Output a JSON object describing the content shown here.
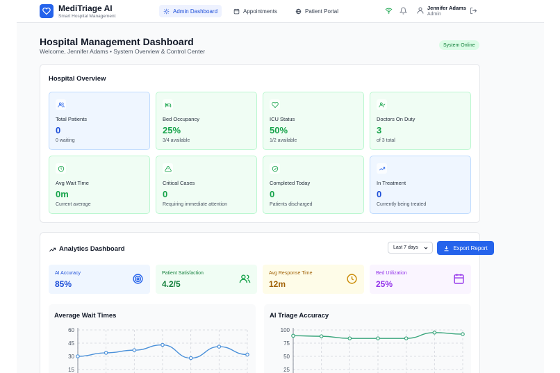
{
  "brand": {
    "title": "MediTriage AI",
    "subtitle": "Smart Hospital Management"
  },
  "nav": [
    {
      "label": "Admin Dashboard",
      "icon": "gear-icon"
    },
    {
      "label": "Appointments",
      "icon": "calendar-icon"
    },
    {
      "label": "Patient Portal",
      "icon": "globe-icon"
    }
  ],
  "user": {
    "name": "Jennifer Adams",
    "role": "Admin"
  },
  "header": {
    "title": "Hospital Management Dashboard",
    "subtitle": "Welcome, Jennifer Adams • System Overview & Control Center",
    "status": "System Online"
  },
  "overview": {
    "title": "Hospital Overview",
    "stats": [
      {
        "label": "Total Patients",
        "value": "0",
        "sub": "0 waiting",
        "icon": "users-icon",
        "tone": "blue"
      },
      {
        "label": "Bed Occupancy",
        "value": "25%",
        "sub": "3/4 available",
        "icon": "bed-icon",
        "tone": "green"
      },
      {
        "label": "ICU Status",
        "value": "50%",
        "sub": "1/2 available",
        "icon": "heart-icon",
        "tone": "green"
      },
      {
        "label": "Doctors On Duty",
        "value": "3",
        "sub": "of 3 total",
        "icon": "user-check-icon",
        "tone": "green"
      },
      {
        "label": "Avg Wait Time",
        "value": "0m",
        "sub": "Current average",
        "icon": "clock-icon",
        "tone": "green"
      },
      {
        "label": "Critical Cases",
        "value": "0",
        "sub": "Requiring immediate attention",
        "icon": "alert-triangle-icon",
        "tone": "green"
      },
      {
        "label": "Completed Today",
        "value": "0",
        "sub": "Patients discharged",
        "icon": "check-circle-icon",
        "tone": "green"
      },
      {
        "label": "In Treatment",
        "value": "0",
        "sub": "Currently being treated",
        "icon": "trending-up-icon",
        "tone": "blue"
      }
    ]
  },
  "analytics": {
    "title": "Analytics Dashboard",
    "range": "Last 7 days",
    "export_label": "Export Report",
    "metrics": [
      {
        "label": "AI Accuracy",
        "value": "85%",
        "icon": "target-icon",
        "bg": "#eff6ff",
        "color": "#1d4ed8"
      },
      {
        "label": "Patient Satisfaction",
        "value": "4.2/5",
        "icon": "users-icon",
        "bg": "#f0fdf4",
        "color": "#15803d"
      },
      {
        "label": "Avg Response Time",
        "value": "12m",
        "icon": "clock-icon",
        "bg": "#fefce8",
        "color": "#a16207"
      },
      {
        "label": "Bed Utilization",
        "value": "25%",
        "icon": "calendar-icon",
        "bg": "#faf5ff",
        "color": "#9333ea"
      }
    ]
  },
  "chart_data": [
    {
      "type": "line",
      "title": "Average Wait Times",
      "y_ticks": [
        60,
        45,
        30,
        15
      ],
      "ylim": [
        15,
        60
      ],
      "values": [
        30,
        34,
        37,
        43,
        28,
        41,
        32
      ],
      "color": "#4a90d9"
    },
    {
      "type": "line",
      "title": "AI Triage Accuracy",
      "y_ticks": [
        100,
        75,
        50,
        25
      ],
      "ylim": [
        25,
        100
      ],
      "values": [
        89,
        88,
        84,
        84,
        84,
        95,
        92
      ],
      "color": "#3aa67c"
    }
  ]
}
